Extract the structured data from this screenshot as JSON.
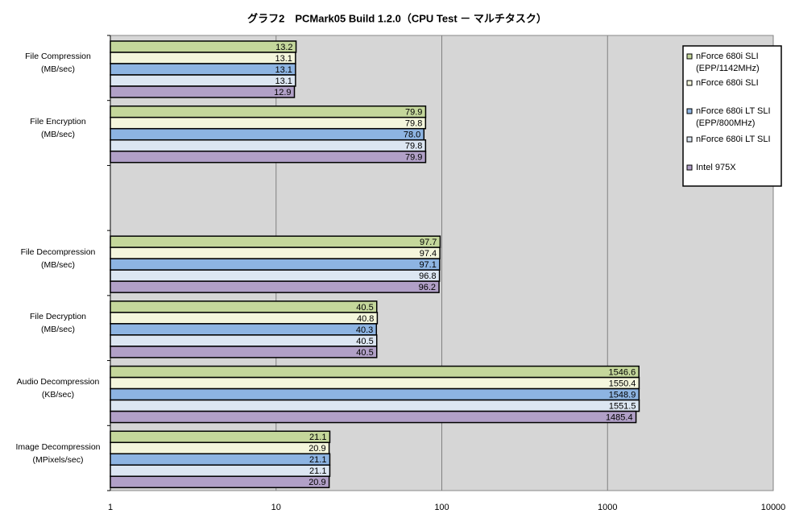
{
  "chart_data": {
    "type": "bar",
    "orientation": "horizontal",
    "title": "グラフ2　PCMark05 Build 1.2.0（CPU Test － マルチタスク）",
    "categories": [
      "File Compression\n(MB/sec)",
      "File Encryption\n(MB/sec)",
      null,
      "File Decompression\n(MB/sec)",
      "File Decryption\n(MB/sec)",
      "Audio Decompression\n(KB/sec)",
      "Image Decompression\n(MPixels/sec)"
    ],
    "series": [
      {
        "name": "nForce 680i SLI\n(EPP/1142MHz)",
        "color": "#c4d79b",
        "values": [
          13.2,
          79.9,
          null,
          97.7,
          40.5,
          1546.6,
          21.1
        ]
      },
      {
        "name": "nForce 680i SLI",
        "color": "#f4f6dc",
        "values": [
          13.1,
          79.8,
          null,
          97.4,
          40.8,
          1550.4,
          20.9
        ]
      },
      {
        "name": "nForce 680i LT SLI\n(EPP/800MHz)",
        "color": "#8db4e2",
        "values": [
          13.1,
          78.0,
          null,
          97.1,
          40.3,
          1548.9,
          21.1
        ],
        "value_labels": [
          "13.1",
          "78.0",
          null,
          "97.1",
          "40.3",
          "1548.9",
          "21.1"
        ]
      },
      {
        "name": "nForce 680i LT SLI",
        "color": "#dce6f2",
        "values": [
          13.1,
          79.8,
          null,
          96.8,
          40.5,
          1551.5,
          21.1
        ]
      },
      {
        "name": "Intel 975X",
        "color": "#b1a0c7",
        "values": [
          12.9,
          79.9,
          null,
          96.2,
          40.5,
          1485.4,
          20.9
        ]
      }
    ],
    "xlim": [
      1,
      10000
    ],
    "xticks": [
      1,
      10,
      100,
      1000,
      10000
    ],
    "log_scale": true,
    "grid": true,
    "legend": "top-right"
  }
}
